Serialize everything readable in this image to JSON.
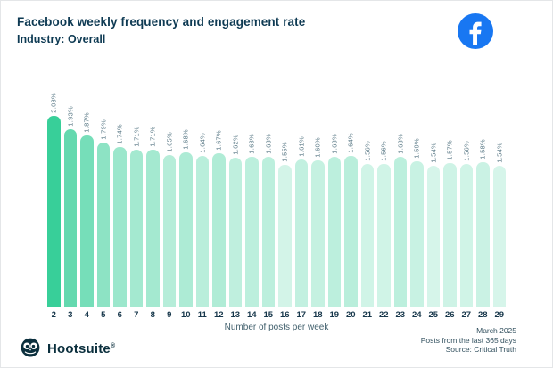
{
  "header": {
    "title": "Facebook weekly frequency and engagement rate",
    "subtitle": "Industry: Overall",
    "logo_icon": "facebook-icon"
  },
  "chart_data": {
    "type": "bar",
    "title": "Facebook weekly frequency and engagement rate",
    "subtitle": "Industry: Overall",
    "categories": [
      "2",
      "3",
      "4",
      "5",
      "6",
      "7",
      "8",
      "9",
      "10",
      "11",
      "12",
      "13",
      "14",
      "15",
      "16",
      "17",
      "18",
      "19",
      "20",
      "21",
      "22",
      "23",
      "24",
      "25",
      "26",
      "27",
      "28",
      "29"
    ],
    "values": [
      2.08,
      1.93,
      1.87,
      1.79,
      1.74,
      1.71,
      1.71,
      1.65,
      1.68,
      1.64,
      1.67,
      1.62,
      1.63,
      1.63,
      1.55,
      1.61,
      1.6,
      1.63,
      1.64,
      1.56,
      1.56,
      1.63,
      1.59,
      1.54,
      1.57,
      1.56,
      1.58,
      1.54
    ],
    "value_labels": [
      "2.08%",
      "1.93%",
      "1.87%",
      "1.79%",
      "1.74%",
      "1.71%",
      "1.71%",
      "1.65%",
      "1.68%",
      "1.64%",
      "1.67%",
      "1.62%",
      "1.63%",
      "1.63%",
      "1.55%",
      "1.61%",
      "1.60%",
      "1.63%",
      "1.64%",
      "1.56%",
      "1.56%",
      "1.63%",
      "1.59%",
      "1.54%",
      "1.57%",
      "1.56%",
      "1.58%",
      "1.54%"
    ],
    "xlabel": "Number of posts per week",
    "ylabel": "",
    "ylim": [
      0,
      2.3
    ],
    "grid": false,
    "legend": false,
    "bar_color_base": "#00c17c",
    "color_rule": "bar opacity scales with value",
    "opacity_range": [
      0.16,
      0.78
    ]
  },
  "footer": {
    "brand": "Hootsuite",
    "brand_mark": "®",
    "date": "March 2025",
    "note1": "Posts from the last 365 days",
    "note2": "Source: Critical Truth"
  },
  "colors": {
    "title_text": "#0e3a53",
    "value_label_text": "#5b7a87",
    "axis_text": "#16364a",
    "facebook_blue": "#1877F2",
    "brand_navy": "#0b2f3d",
    "background": "#ffffff"
  }
}
